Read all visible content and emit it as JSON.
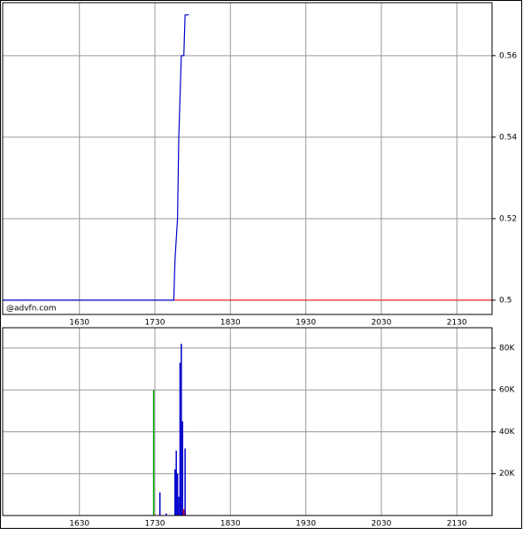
{
  "chart_data": [
    {
      "type": "line",
      "watermark": "@advfn.com",
      "x": [
        929,
        1065,
        1066,
        1068,
        1069,
        1071,
        1073,
        1074,
        1077
      ],
      "series": [
        {
          "color": "#0000cc",
          "values": [
            0.5,
            0.5,
            0.51,
            0.52,
            0.54,
            0.56,
            0.56,
            0.57,
            0.57
          ]
        }
      ],
      "reference_line": {
        "value": 0.5,
        "x_from": 1065,
        "color": "#ff0000"
      },
      "xlim": [
        929,
        1318
      ],
      "xticks": [
        {
          "value": 990,
          "label": "1630"
        },
        {
          "value": 1050,
          "label": "1730"
        },
        {
          "value": 1110,
          "label": "1830"
        },
        {
          "value": 1170,
          "label": "1930"
        },
        {
          "value": 1230,
          "label": "2030"
        },
        {
          "value": 1290,
          "label": "2130"
        }
      ],
      "ylim": [
        0.4965,
        0.573
      ],
      "yticks": [
        0.5,
        0.52,
        0.54,
        0.56
      ],
      "grid": true
    },
    {
      "type": "bar",
      "x": [
        1049,
        1054,
        1059,
        1066,
        1067,
        1068,
        1069,
        1070,
        1071,
        1072,
        1073,
        1074
      ],
      "values": [
        60000,
        11000,
        1000,
        22000,
        31000,
        20000,
        9000,
        73000,
        82000,
        45000,
        3000,
        32000
      ],
      "colors": [
        "#00aa00",
        "#0000cc",
        "#0000cc",
        "#0000cc",
        "#0000cc",
        "#0000cc",
        "#0000cc",
        "#0000cc",
        "#0000cc",
        "#0000cc",
        "#ff0000",
        "#0000cc"
      ],
      "xlim": [
        929,
        1318
      ],
      "xticks": [
        {
          "value": 990,
          "label": "1630"
        },
        {
          "value": 1050,
          "label": "1730"
        },
        {
          "value": 1110,
          "label": "1830"
        },
        {
          "value": 1170,
          "label": "1930"
        },
        {
          "value": 1230,
          "label": "2030"
        },
        {
          "value": 1290,
          "label": "2130"
        }
      ],
      "ylim": [
        0,
        89700
      ],
      "yticks": [
        {
          "value": 20000,
          "label": "20K"
        },
        {
          "value": 40000,
          "label": "40K"
        },
        {
          "value": 60000,
          "label": "60K"
        },
        {
          "value": 80000,
          "label": "80K"
        }
      ],
      "grid": true
    }
  ]
}
